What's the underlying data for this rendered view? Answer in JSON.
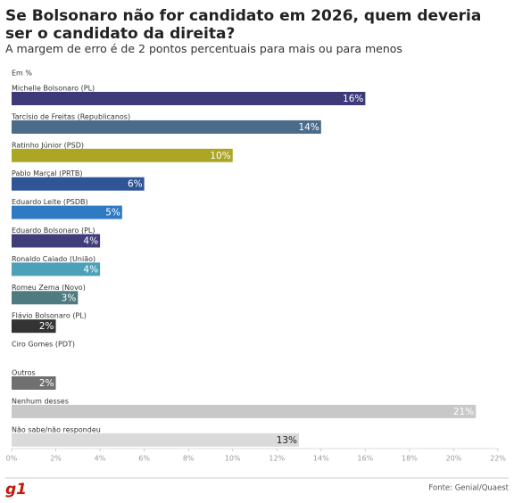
{
  "chart_data": {
    "type": "hbar",
    "title": "Se Bolsonaro não for candidato em 2026, quem deveria ser o candidato da direita?",
    "subtitle": "A margem de erro é de 2 pontos percentuais para mais ou para menos",
    "unit_note": "Em %",
    "categories": [
      "Michelle Bolsonaro (PL)",
      "Tarcísio de Freitas (Republicanos)",
      "Ratinho Júnior (PSD)",
      "Pablo Marçal (PRTB)",
      "Eduardo Leite (PSDB)",
      "Eduardo Bolsonaro (PL)",
      "Ronaldo Caiado (União)",
      "Romeu Zema (Novo)",
      "Flávio Bolsonaro (PL)",
      "Ciro Gomes (PDT)",
      "Outros",
      "Nenhum desses",
      "Não sabe/não respondeu"
    ],
    "values": [
      16,
      14,
      10,
      6,
      5,
      4,
      4,
      3,
      2,
      null,
      2,
      21,
      13
    ],
    "value_labels": [
      "16%",
      "14%",
      "10%",
      "6%",
      "5%",
      "4%",
      "4%",
      "3%",
      "2%",
      null,
      "2%",
      "21%",
      "13%"
    ],
    "colors": [
      "#3e3a7a",
      "#4a6b8a",
      "#aba624",
      "#2f5597",
      "#2f7bc3",
      "#3f3d7a",
      "#4ba1b9",
      "#4f7b80",
      "#333333",
      null,
      "#707070",
      "#c8c8c8",
      "#dadada"
    ],
    "label_colors": [
      "#ffffff",
      "#ffffff",
      "#ffffff",
      "#ffffff",
      "#ffffff",
      "#ffffff",
      "#ffffff",
      "#ffffff",
      "#ffffff",
      null,
      "#ffffff",
      "#ffffff",
      "#222222"
    ],
    "xlim": [
      0,
      22
    ],
    "xticks": [
      {
        "value": 0,
        "label": "0%"
      },
      {
        "value": 2,
        "label": "2%"
      },
      {
        "value": 4,
        "label": "4%"
      },
      {
        "value": 6,
        "label": "6%"
      },
      {
        "value": 8,
        "label": "8%"
      },
      {
        "value": 10,
        "label": "10%"
      },
      {
        "value": 12,
        "label": "12%"
      },
      {
        "value": 14,
        "label": "14%"
      },
      {
        "value": 16,
        "label": "16%"
      },
      {
        "value": 18,
        "label": "18%"
      },
      {
        "value": 20,
        "label": "20%"
      },
      {
        "value": 22,
        "label": "22%"
      }
    ],
    "logo": "g1",
    "source": "Fonte: Genial/Quaest"
  }
}
